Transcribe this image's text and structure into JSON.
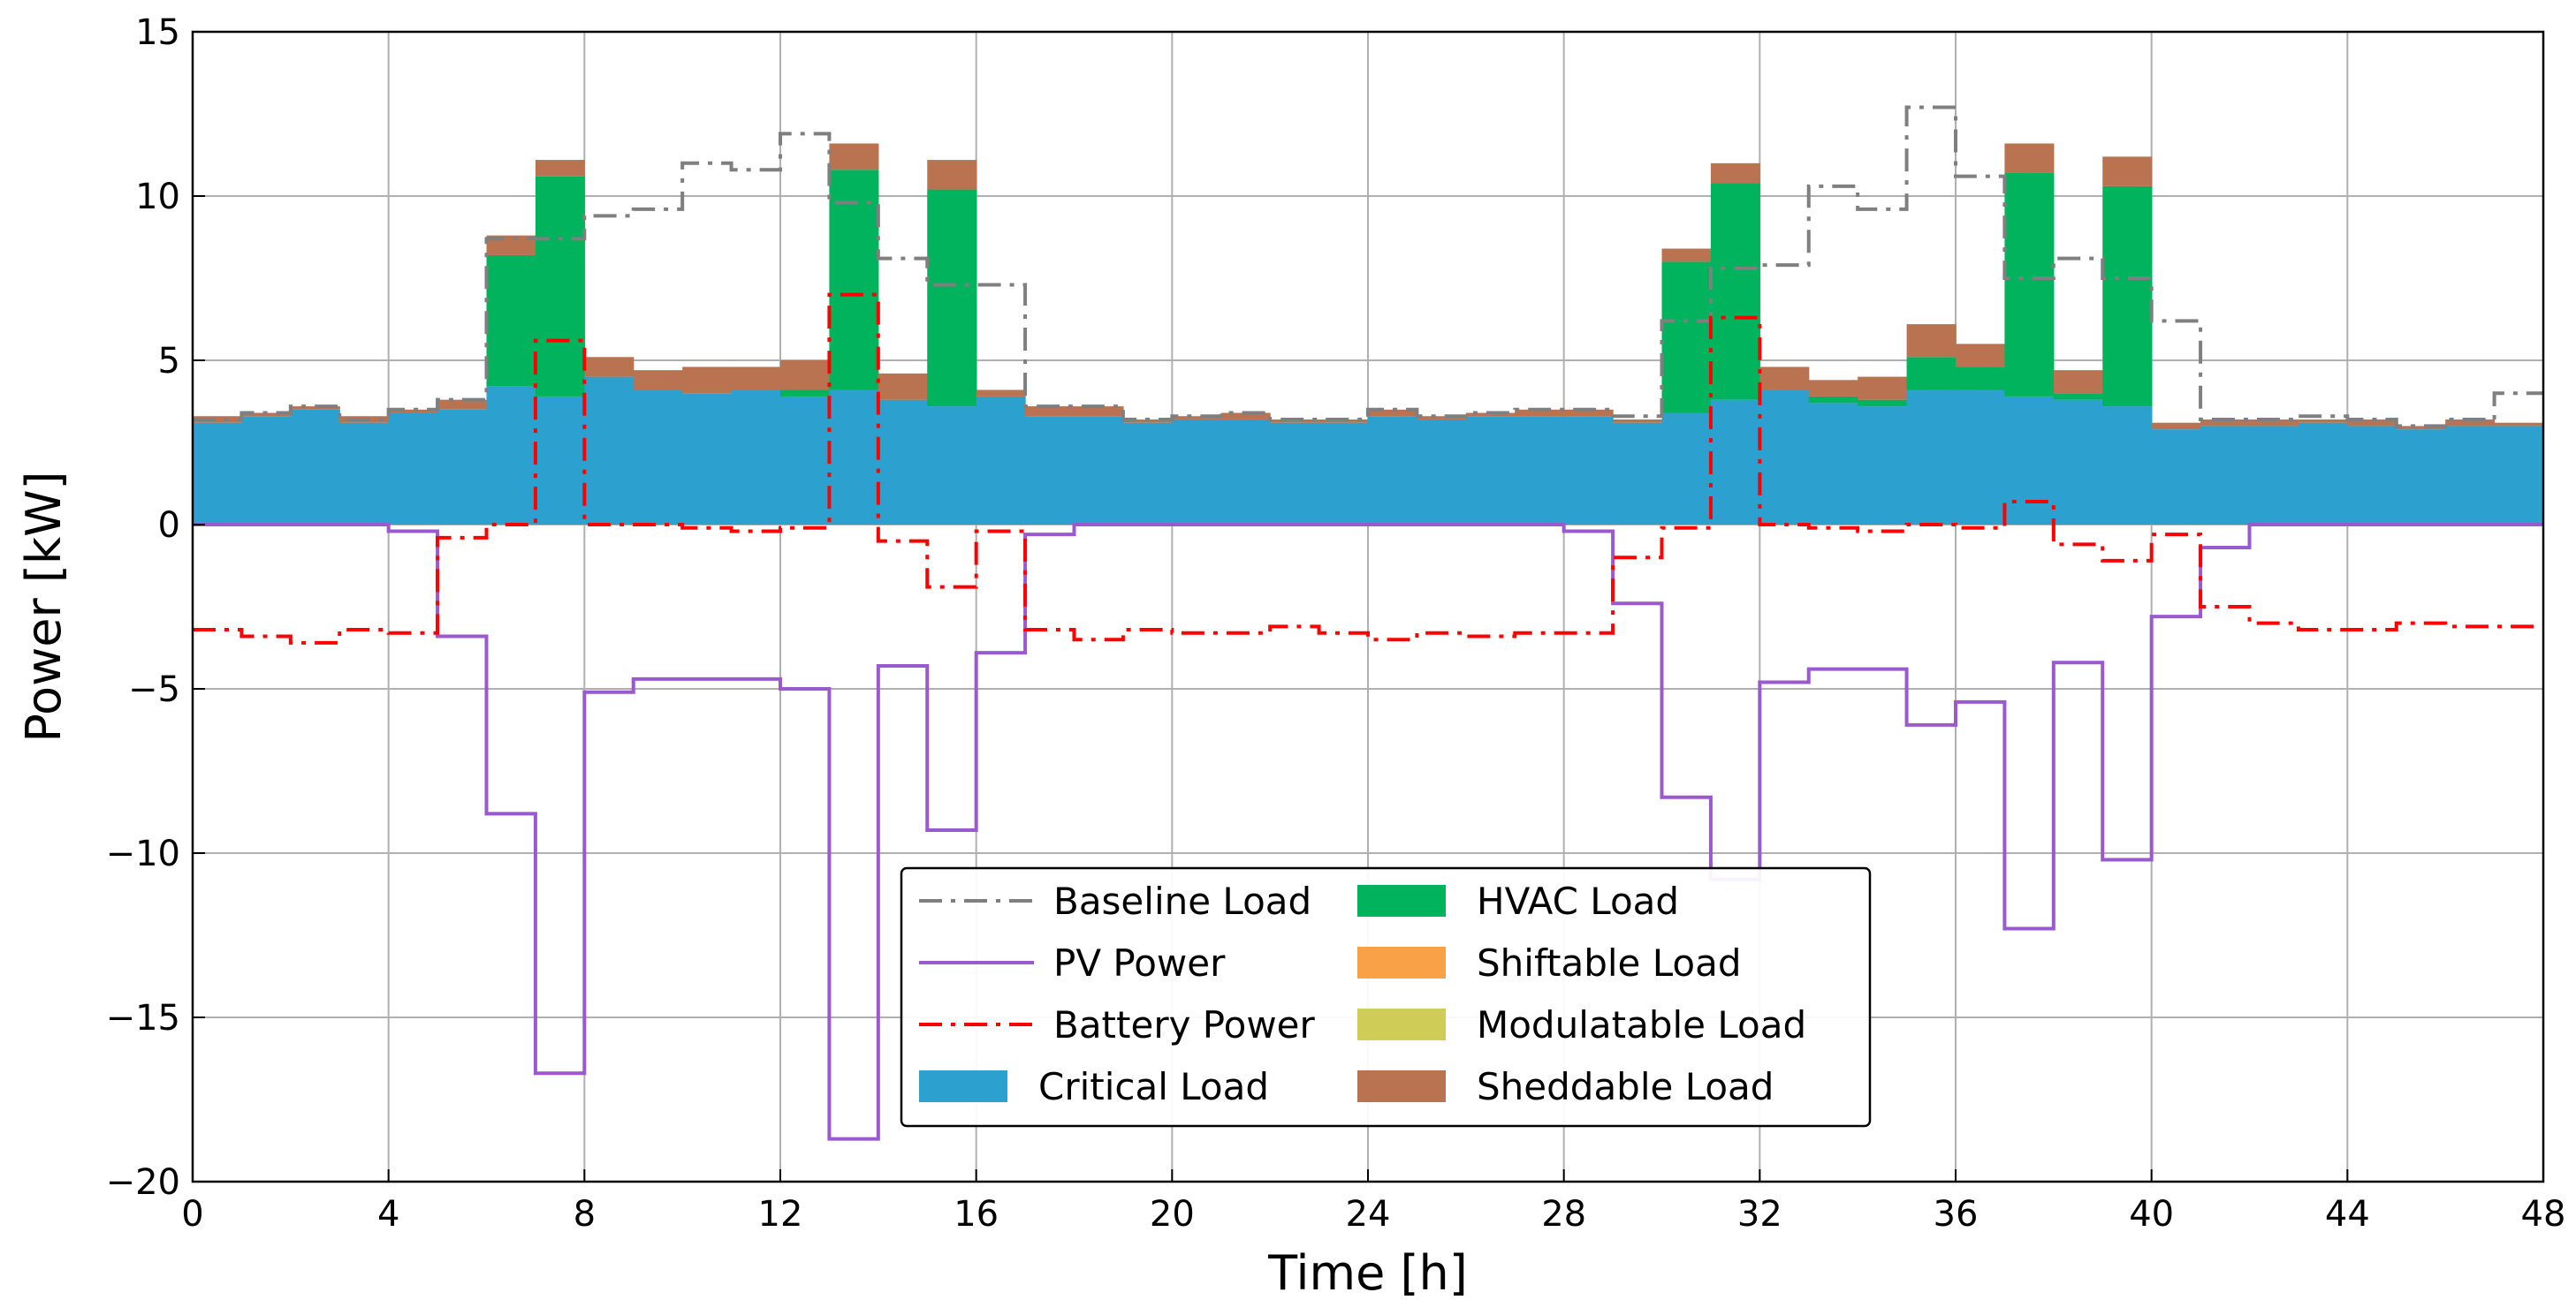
{
  "chart_data": {
    "type": "area",
    "title": "",
    "xlabel": "Time [h]",
    "ylabel": "Power [kW]",
    "xlim": [
      0,
      48
    ],
    "ylim": [
      -20,
      15
    ],
    "xticks": [
      0,
      4,
      8,
      12,
      16,
      20,
      24,
      28,
      32,
      36,
      40,
      44,
      48
    ],
    "yticks": [
      -20,
      -15,
      -10,
      -5,
      0,
      5,
      10,
      15
    ],
    "xtick_labels": [
      "0",
      "4",
      "8",
      "12",
      "16",
      "20",
      "24",
      "28",
      "32",
      "36",
      "40",
      "44",
      "48"
    ],
    "ytick_labels": [
      "−20",
      "−15",
      "−10",
      "−5",
      "0",
      "5",
      "10",
      "15"
    ],
    "grid": true,
    "legend_position": "lower-center",
    "step_hours": 1,
    "stacked_series": [
      {
        "name": "Critical Load",
        "color": "#2ca0cf",
        "values": [
          3.1,
          3.3,
          3.5,
          3.1,
          3.4,
          3.5,
          4.2,
          3.9,
          4.5,
          4.1,
          4.0,
          4.1,
          3.9,
          4.1,
          3.8,
          3.6,
          3.9,
          3.3,
          3.3,
          3.1,
          3.2,
          3.2,
          3.1,
          3.1,
          3.3,
          3.2,
          3.3,
          3.3,
          3.3,
          3.1,
          3.4,
          3.8,
          4.1,
          3.7,
          3.6,
          4.1,
          4.1,
          3.9,
          3.8,
          3.6,
          2.9,
          3.0,
          3.0,
          3.1,
          3.0,
          2.9,
          3.0,
          3.0
        ]
      },
      {
        "name": "HVAC Load",
        "color": "#00b35c",
        "values": [
          0,
          0,
          0,
          0,
          0,
          0,
          4.0,
          6.7,
          0,
          0,
          0,
          0,
          0.2,
          6.7,
          0,
          6.6,
          0,
          0,
          0,
          0,
          0,
          0,
          0,
          0,
          0,
          0,
          0,
          0,
          0,
          0,
          4.6,
          6.6,
          0,
          0.2,
          0.2,
          1.0,
          0.7,
          6.8,
          0.2,
          6.7,
          0,
          0,
          0,
          0,
          0,
          0,
          0,
          0
        ]
      },
      {
        "name": "Shiftable Load",
        "color": "#f9a146",
        "values": [
          0,
          0,
          0,
          0,
          0,
          0,
          0,
          0,
          0,
          0,
          0,
          0,
          0,
          0,
          0,
          0,
          0,
          0,
          0,
          0,
          0,
          0,
          0,
          0,
          0,
          0,
          0,
          0,
          0,
          0,
          0,
          0,
          0,
          0,
          0,
          0,
          0,
          0,
          0,
          0,
          0,
          0,
          0,
          0,
          0,
          0,
          0,
          0
        ]
      },
      {
        "name": "Modulatable Load",
        "color": "#cfcd57",
        "values": [
          0,
          0,
          0,
          0,
          0,
          0,
          0,
          0,
          0,
          0,
          0,
          0,
          0,
          0,
          0,
          0,
          0,
          0,
          0,
          0,
          0,
          0,
          0,
          0,
          0,
          0,
          0,
          0,
          0,
          0,
          0,
          0,
          0,
          0,
          0,
          0,
          0,
          0,
          0,
          0,
          0,
          0,
          0,
          0,
          0,
          0,
          0,
          0
        ]
      },
      {
        "name": "Sheddable Load",
        "color": "#b97350",
        "values": [
          0.2,
          0.1,
          0.1,
          0.2,
          0.1,
          0.3,
          0.6,
          0.5,
          0.6,
          0.6,
          0.8,
          0.7,
          0.9,
          0.8,
          0.8,
          0.9,
          0.2,
          0.3,
          0.3,
          0.1,
          0.1,
          0.2,
          0.1,
          0.1,
          0.2,
          0.1,
          0.1,
          0.2,
          0.2,
          0.1,
          0.4,
          0.6,
          0.7,
          0.5,
          0.7,
          1.0,
          0.7,
          0.9,
          0.7,
          0.9,
          0.2,
          0.2,
          0.2,
          0.1,
          0.2,
          0.1,
          0.2,
          0.1
        ]
      }
    ],
    "line_series": [
      {
        "name": "Baseline Load",
        "color": "#7f7f7f",
        "style": "dashdot",
        "values": [
          3.2,
          3.4,
          3.6,
          3.2,
          3.5,
          3.8,
          8.7,
          8.7,
          9.4,
          9.6,
          11.0,
          10.8,
          11.9,
          9.8,
          8.1,
          7.3,
          7.3,
          3.6,
          3.6,
          3.2,
          3.3,
          3.4,
          3.2,
          3.2,
          3.5,
          3.3,
          3.4,
          3.5,
          3.5,
          3.3,
          6.2,
          7.8,
          7.9,
          10.3,
          9.6,
          12.7,
          10.6,
          7.5,
          8.1,
          7.5,
          6.2,
          3.2,
          3.2,
          3.3,
          3.2,
          3.0,
          3.2,
          4.0
        ]
      },
      {
        "name": "PV Power",
        "color": "#9b59d0",
        "style": "solid",
        "values": [
          0,
          0,
          0,
          0,
          -0.2,
          -3.4,
          -8.8,
          -16.7,
          -5.1,
          -4.7,
          -4.7,
          -4.7,
          -5.0,
          -18.7,
          -4.3,
          -9.3,
          -3.9,
          -0.3,
          0,
          0,
          0,
          0,
          0,
          0,
          0,
          0,
          0,
          0,
          -0.2,
          -2.4,
          -8.3,
          -10.8,
          -4.8,
          -4.4,
          -4.4,
          -6.1,
          -5.4,
          -12.3,
          -4.2,
          -10.2,
          -2.8,
          -0.7,
          0,
          0,
          0,
          0,
          0,
          0
        ]
      },
      {
        "name": "Battery Power",
        "color": "#ff0000",
        "style": "dashdot",
        "values": [
          -3.2,
          -3.4,
          -3.6,
          -3.2,
          -3.3,
          -0.4,
          0,
          5.6,
          0,
          0,
          -0.1,
          -0.2,
          -0.1,
          7.0,
          -0.5,
          -1.9,
          -0.2,
          -3.2,
          -3.5,
          -3.2,
          -3.3,
          -3.3,
          -3.1,
          -3.3,
          -3.5,
          -3.3,
          -3.4,
          -3.3,
          -3.3,
          -1.0,
          -0.1,
          6.3,
          0,
          -0.1,
          -0.2,
          0,
          -0.1,
          0.7,
          -0.6,
          -1.1,
          -0.3,
          -2.5,
          -3.0,
          -3.2,
          -3.2,
          -3.0,
          -3.1,
          -3.1
        ]
      }
    ],
    "legend": {
      "left_column": [
        "Baseline Load",
        "PV Power",
        "Battery Power",
        "Critical Load"
      ],
      "right_column": [
        "HVAC Load",
        "Shiftable Load",
        "Modulatable Load",
        "Sheddable Load"
      ]
    }
  }
}
